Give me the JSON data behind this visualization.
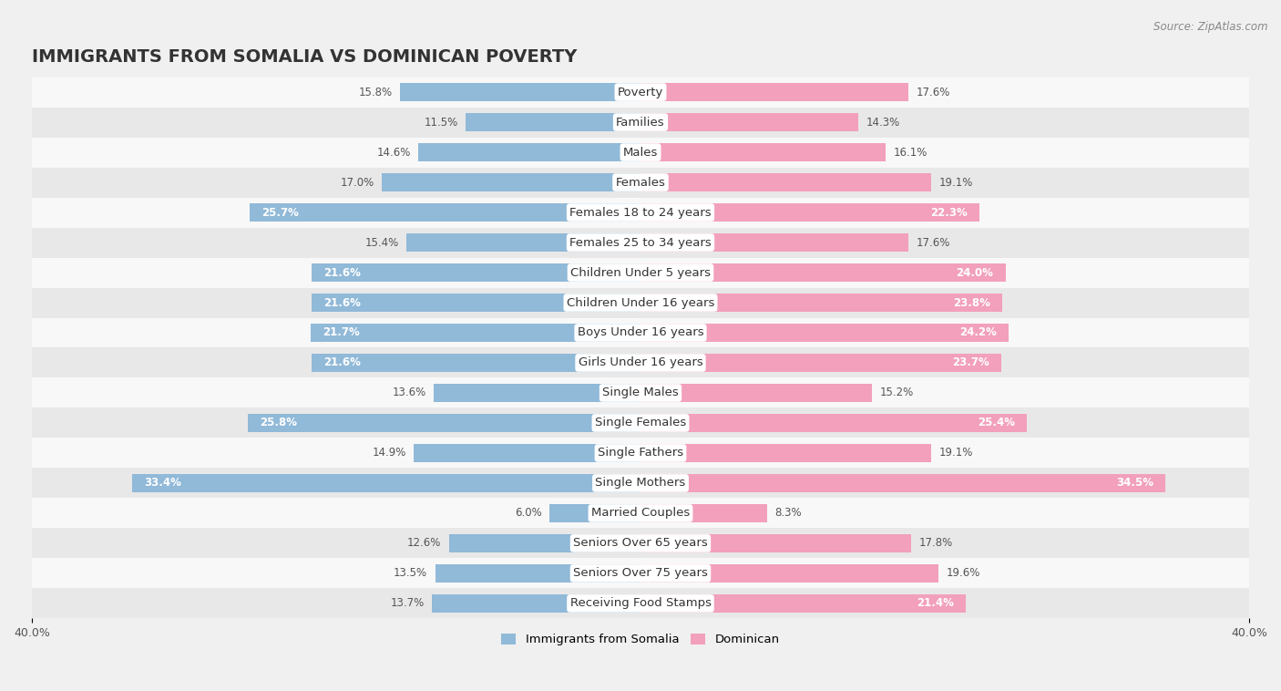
{
  "title": "IMMIGRANTS FROM SOMALIA VS DOMINICAN POVERTY",
  "source": "Source: ZipAtlas.com",
  "categories": [
    "Poverty",
    "Families",
    "Males",
    "Females",
    "Females 18 to 24 years",
    "Females 25 to 34 years",
    "Children Under 5 years",
    "Children Under 16 years",
    "Boys Under 16 years",
    "Girls Under 16 years",
    "Single Males",
    "Single Females",
    "Single Fathers",
    "Single Mothers",
    "Married Couples",
    "Seniors Over 65 years",
    "Seniors Over 75 years",
    "Receiving Food Stamps"
  ],
  "somalia_values": [
    15.8,
    11.5,
    14.6,
    17.0,
    25.7,
    15.4,
    21.6,
    21.6,
    21.7,
    21.6,
    13.6,
    25.8,
    14.9,
    33.4,
    6.0,
    12.6,
    13.5,
    13.7
  ],
  "dominican_values": [
    17.6,
    14.3,
    16.1,
    19.1,
    22.3,
    17.6,
    24.0,
    23.8,
    24.2,
    23.7,
    15.2,
    25.4,
    19.1,
    34.5,
    8.3,
    17.8,
    19.6,
    21.4
  ],
  "somalia_color": "#91b9d8",
  "dominican_color": "#f2a0bc",
  "background_color": "#f0f0f0",
  "row_light": "#f8f8f8",
  "row_dark": "#e8e8e8",
  "xlim": 40.0,
  "bar_height": 0.62,
  "title_fontsize": 14,
  "label_fontsize": 9.5,
  "value_fontsize": 8.5,
  "legend_labels": [
    "Immigrants from Somalia",
    "Dominican"
  ],
  "label_pill_color": "#ffffff",
  "somalia_value_inside_threshold": 20.0,
  "dominican_value_inside_threshold": 20.0
}
